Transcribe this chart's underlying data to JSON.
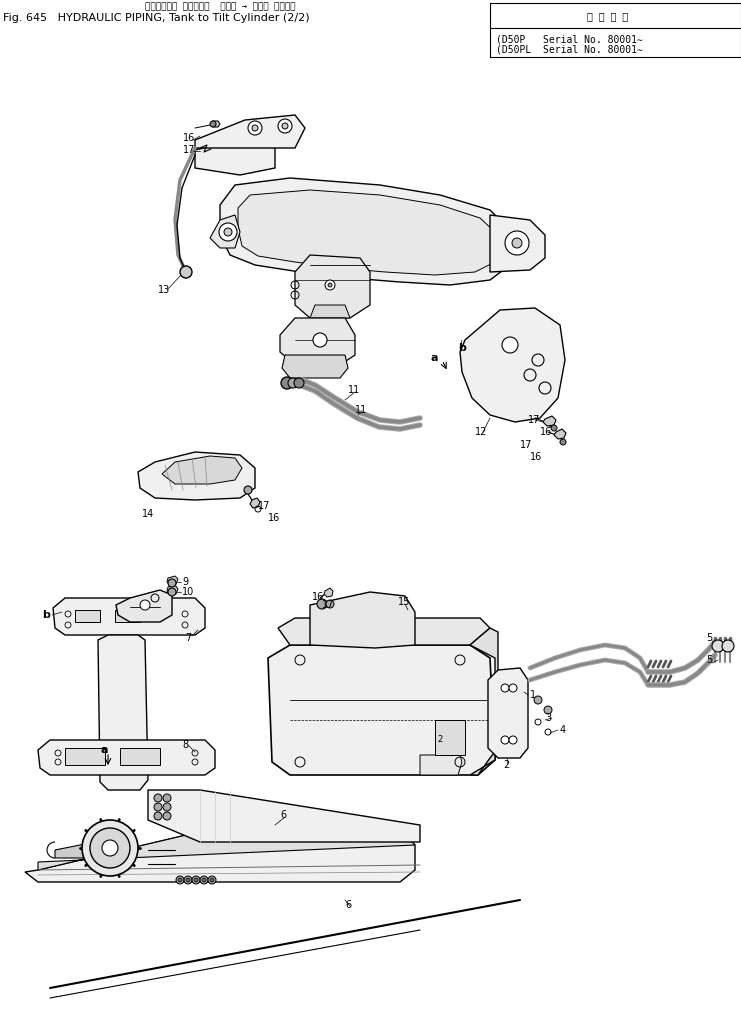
{
  "title_japanese": "ハイドロック パイピング タンク → チルト シリンダ",
  "title_english": "Fig. 645   HYDRAULIC PIPING, Tank to Tilt Cylinder (2/2)",
  "serial_header": "適 用 機 種",
  "serial_line1": "D50P   Serial No. 80001∼",
  "serial_line2": "D50PL  Serial No. 80001∼",
  "bg_color": "#ffffff",
  "fig_width": 7.41,
  "fig_height": 10.17,
  "dpi": 100
}
